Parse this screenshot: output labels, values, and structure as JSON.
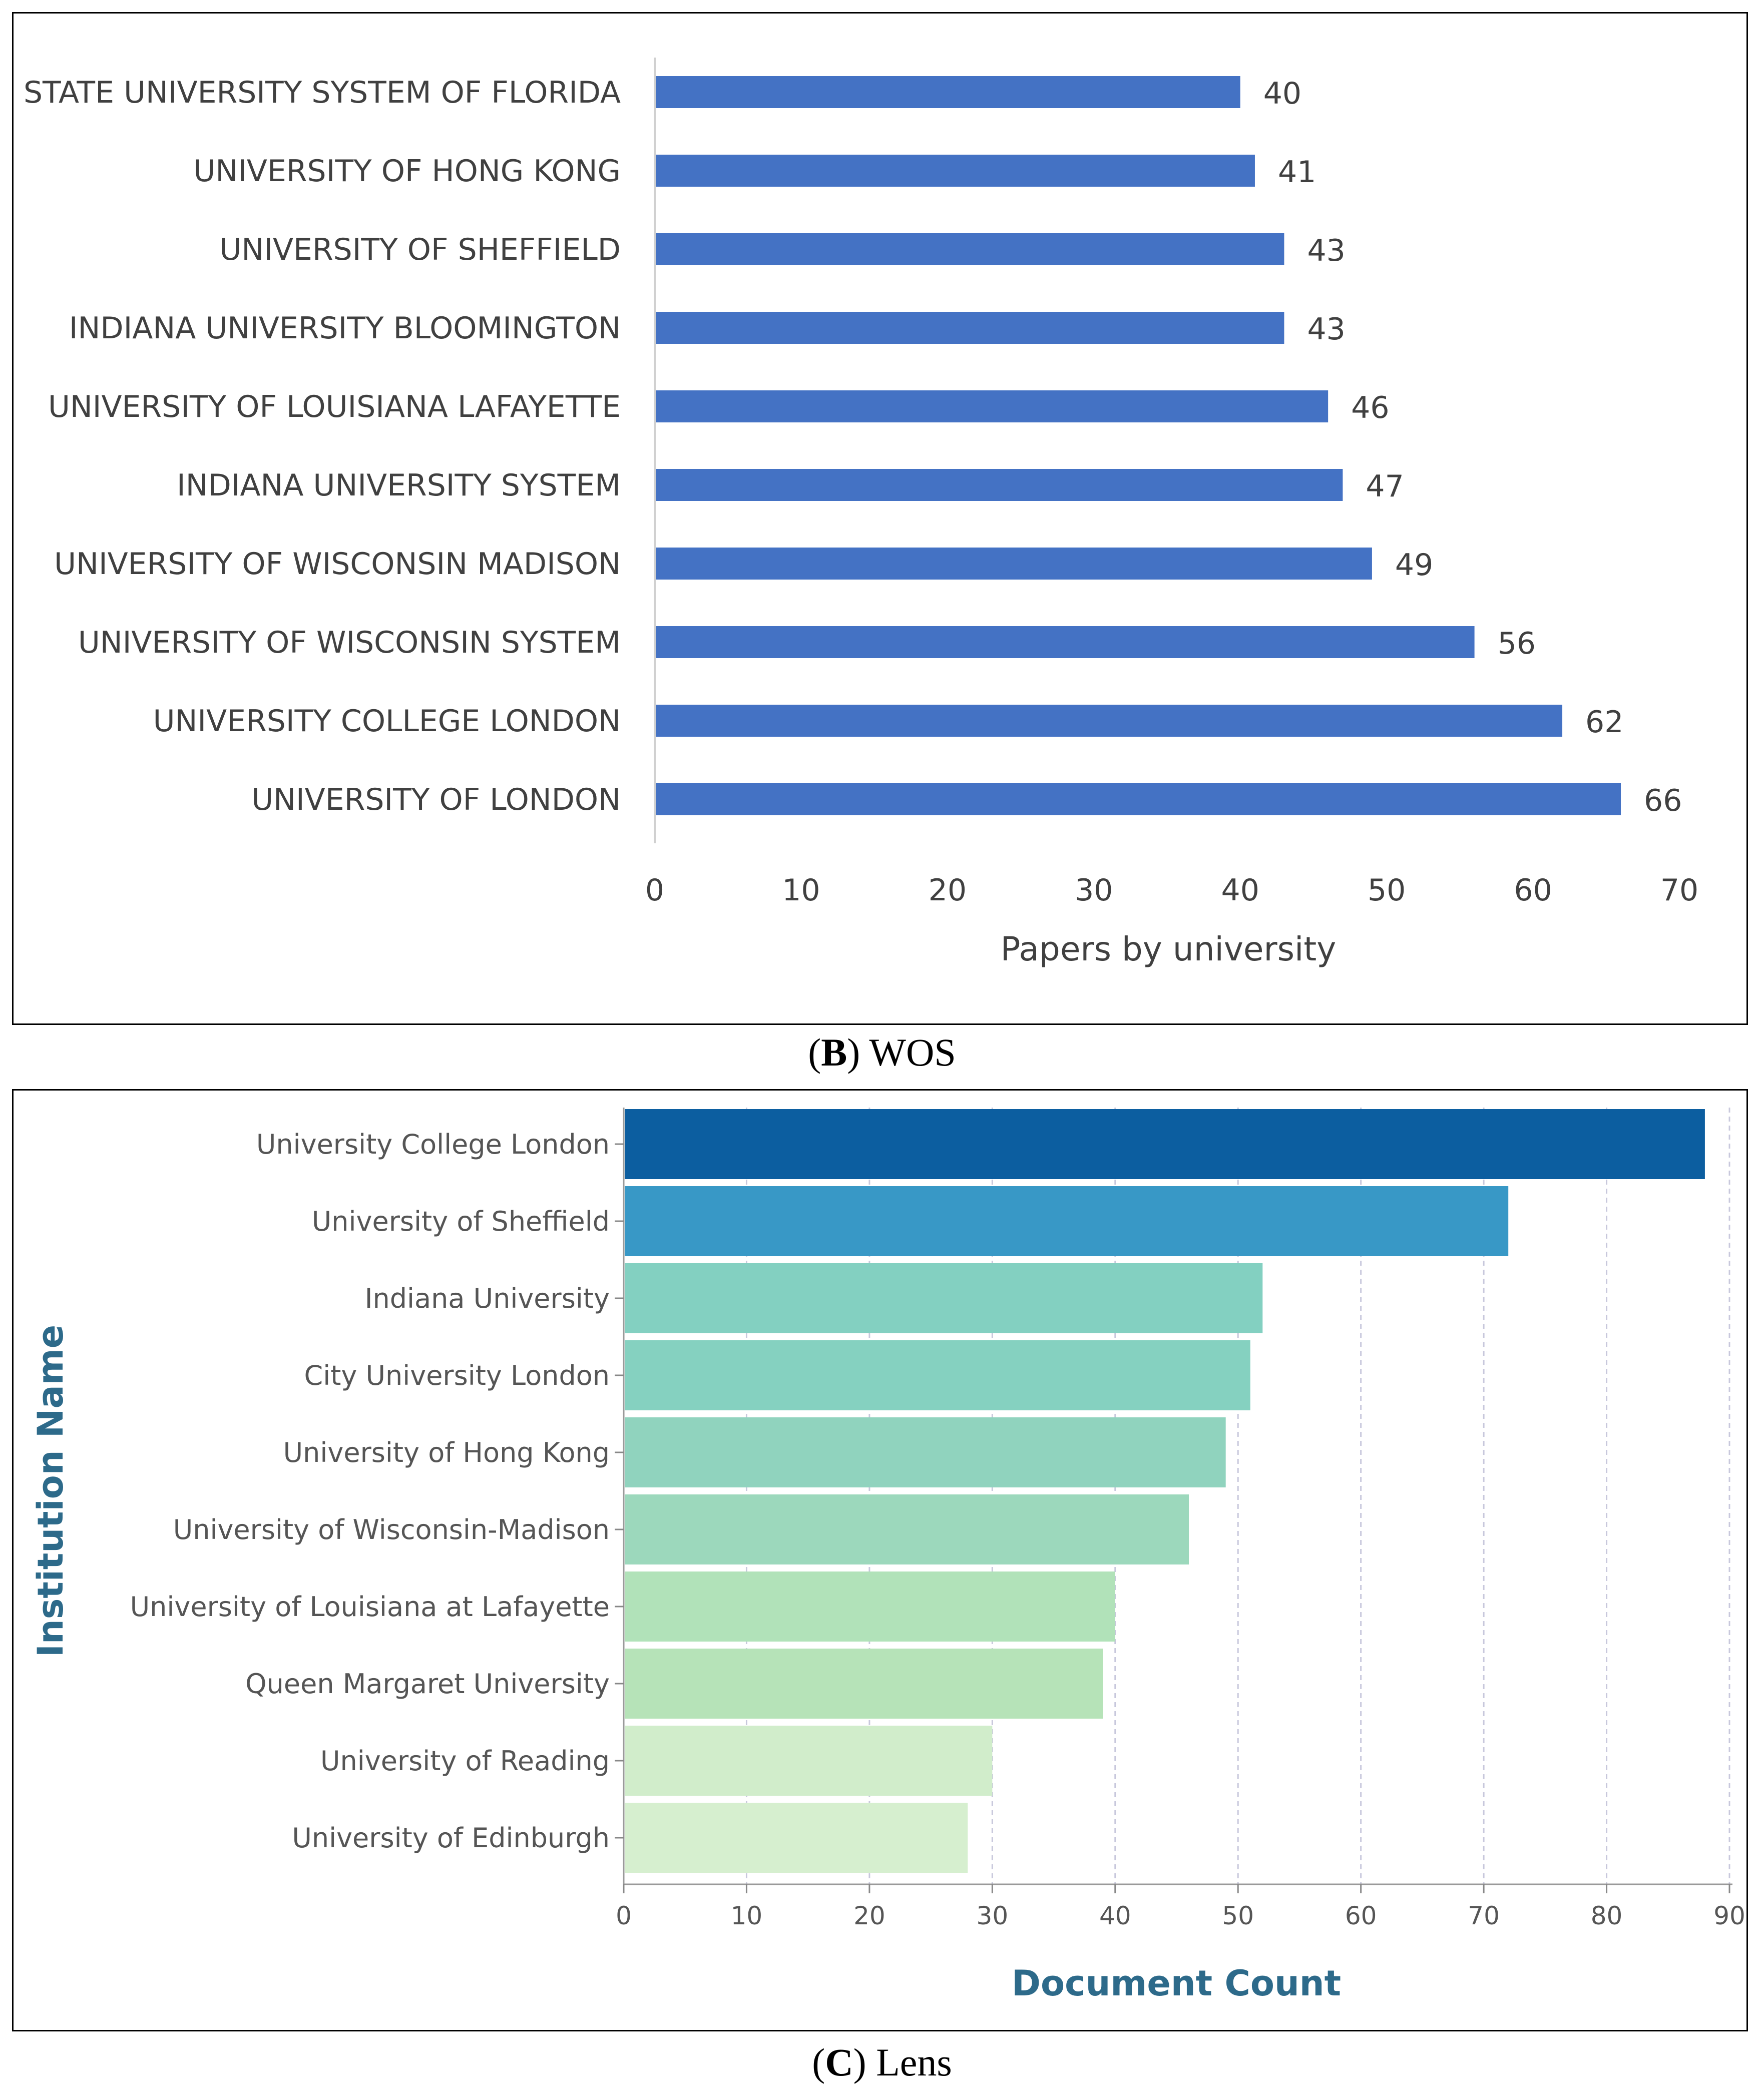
{
  "chart_data": [
    {
      "type": "bar",
      "orientation": "horizontal",
      "panel": "B",
      "caption_letter": "B",
      "caption_text": "WOS",
      "categories": [
        "STATE UNIVERSITY SYSTEM OF FLORIDA",
        "UNIVERSITY OF HONG KONG",
        "UNIVERSITY OF SHEFFIELD",
        "INDIANA UNIVERSITY BLOOMINGTON",
        "UNIVERSITY OF LOUISIANA LAFAYETTE",
        "INDIANA UNIVERSITY SYSTEM",
        "UNIVERSITY OF WISCONSIN MADISON",
        "UNIVERSITY OF WISCONSIN SYSTEM",
        "UNIVERSITY COLLEGE LONDON",
        "UNIVERSITY OF LONDON"
      ],
      "values": [
        40,
        41,
        43,
        43,
        46,
        47,
        49,
        56,
        62,
        66
      ],
      "xlabel": "Papers by university",
      "ylabel": "",
      "xlim": [
        0,
        70
      ],
      "xticks": [
        0,
        10,
        20,
        30,
        40,
        50,
        60,
        70
      ],
      "bar_color": "#4472C4",
      "grid": false,
      "data_labels": true
    },
    {
      "type": "bar",
      "orientation": "horizontal",
      "panel": "C",
      "caption_letter": "C",
      "caption_text": "Lens",
      "categories": [
        "University College London",
        "University of Sheffield",
        "Indiana University",
        "City University London",
        "University of Hong Kong",
        "University of Wisconsin-Madison",
        "University of Louisiana at Lafayette",
        "Queen Margaret University",
        "University of Reading",
        "University of Edinburgh"
      ],
      "values": [
        88,
        72,
        52,
        51,
        49,
        46,
        40,
        39,
        30,
        28
      ],
      "colors": [
        "#0C5EA0",
        "#3898C6",
        "#83D0C1",
        "#85D1C0",
        "#90D3BE",
        "#9CD8BC",
        "#B1E2B9",
        "#B6E3B8",
        "#D1EDCB",
        "#D6EFCF"
      ],
      "xlabel": "Document Count",
      "ylabel": "Institution Name",
      "xlim": [
        0,
        90
      ],
      "xticks": [
        0,
        10,
        20,
        30,
        40,
        50,
        60,
        70,
        80,
        90
      ],
      "grid": true,
      "data_labels": false
    }
  ]
}
